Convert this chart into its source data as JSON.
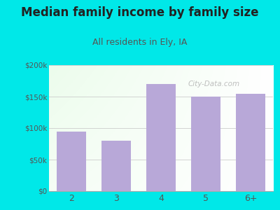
{
  "title": "Median family income by family size",
  "subtitle": "All residents in Ely, IA",
  "categories": [
    "2",
    "3",
    "4",
    "5",
    "6+"
  ],
  "values": [
    95000,
    80000,
    170000,
    150000,
    155000
  ],
  "bar_color": "#b8a8d8",
  "background_outer": "#00e8e8",
  "title_fontsize": 12,
  "subtitle_fontsize": 9,
  "title_color": "#222222",
  "subtitle_color": "#555555",
  "tick_color": "#555555",
  "watermark": "City-Data.com",
  "ylim": [
    0,
    200000
  ],
  "yticks": [
    0,
    50000,
    100000,
    150000,
    200000
  ],
  "ytick_labels": [
    "$0",
    "$50k",
    "$100k",
    "$150k",
    "$200k"
  ]
}
